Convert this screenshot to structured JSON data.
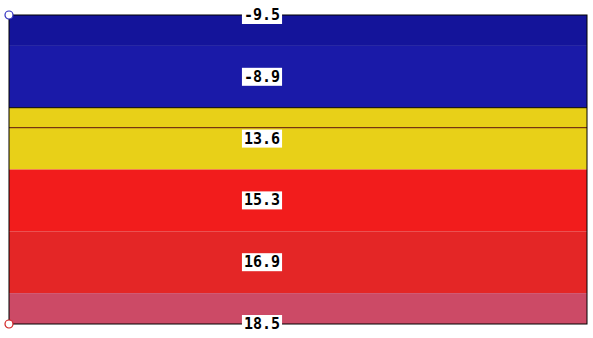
{
  "chart_data": {
    "type": "heatmap",
    "values": [
      -9.5,
      -8.9,
      13.6,
      15.3,
      16.9,
      18.5
    ],
    "colors": [
      "#14149a",
      "#1a1aa8",
      "#e8d018",
      "#f21c1c",
      "#e42626",
      "#cc4a66"
    ],
    "data_labels": true
  }
}
